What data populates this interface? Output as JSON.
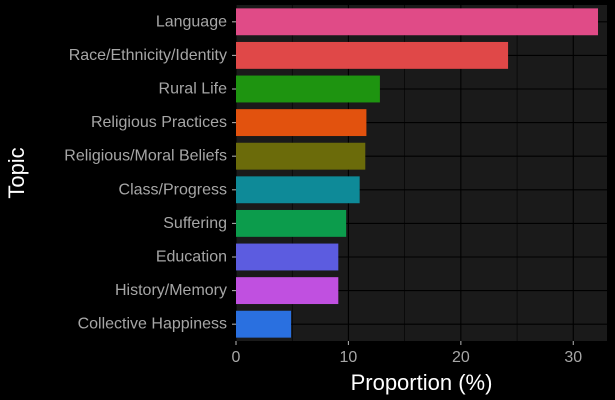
{
  "chart_data": {
    "type": "bar",
    "orientation": "horizontal",
    "title": "",
    "xlabel": "Proportion (%)",
    "ylabel": "Topic",
    "xlim": [
      0,
      33
    ],
    "xticks": [
      0,
      10,
      20,
      30
    ],
    "grid": true,
    "legend": "none",
    "categories": [
      "Language",
      "Race/Ethnicity/Identity",
      "Rural Life",
      "Religious Practices",
      "Religious/Moral Beliefs",
      "Class/Progress",
      "Suffering",
      "Education",
      "History/Memory",
      "Collective Happiness"
    ],
    "values": [
      32.2,
      24.2,
      12.8,
      11.6,
      11.5,
      11.0,
      9.8,
      9.1,
      9.1,
      4.9
    ],
    "colors": [
      "#e04b87",
      "#e04848",
      "#1e9410",
      "#e2520e",
      "#6b6b0a",
      "#0e8a98",
      "#0c9c4c",
      "#5c5ce0",
      "#c050e0",
      "#2a70e0"
    ],
    "background": "#000000",
    "panel_color": "#1a1a1a",
    "grid_color": "#000000"
  }
}
